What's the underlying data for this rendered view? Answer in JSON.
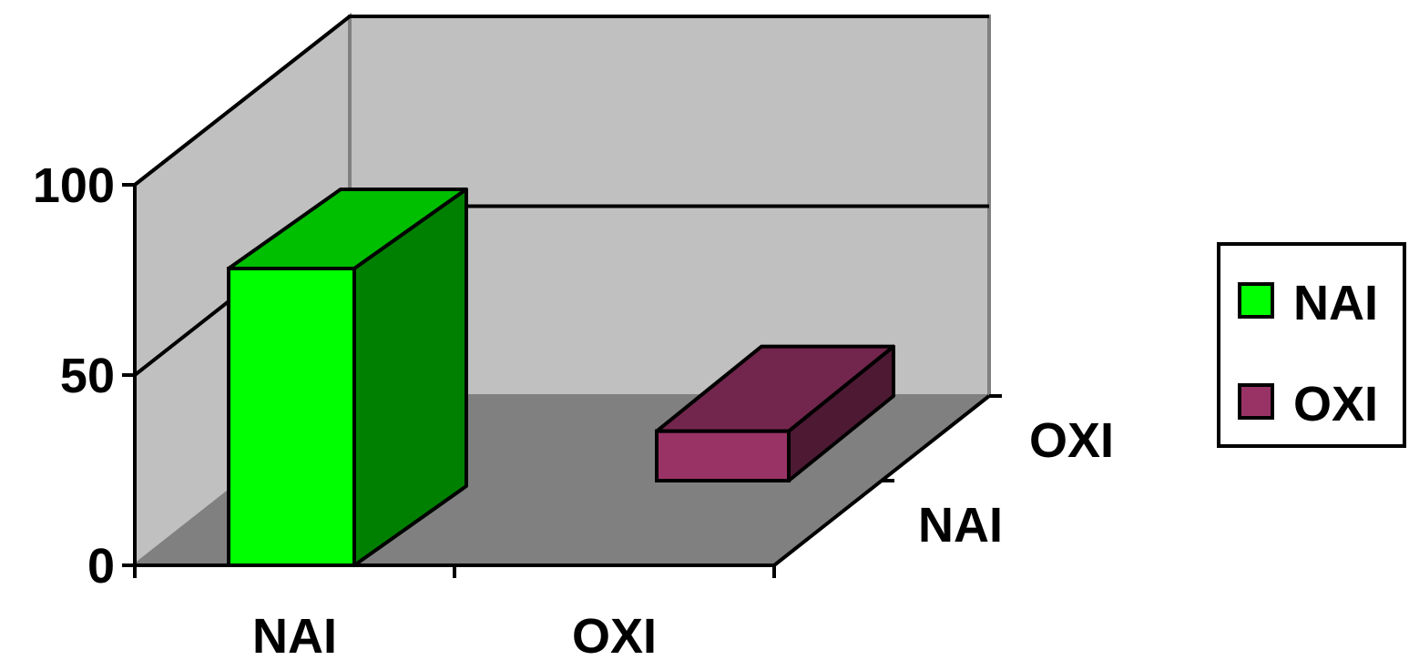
{
  "chart_data": {
    "type": "bar",
    "style": "3d-column",
    "title": "",
    "xlabel": "",
    "ylabel": "",
    "ylim": [
      0,
      100
    ],
    "yticks": [
      0,
      50,
      100
    ],
    "categories": [
      "NAI",
      "OXI"
    ],
    "depth_categories": [
      "NAI",
      "OXI"
    ],
    "series": [
      {
        "name": "NAI",
        "color": "#00ff00",
        "category": "NAI",
        "value": 78
      },
      {
        "name": "OXI",
        "color": "#993366",
        "category": "OXI",
        "value": 13
      }
    ],
    "grid": true,
    "legend": {
      "position": "right",
      "entries": [
        "NAI",
        "OXI"
      ]
    },
    "colors": {
      "back_wall": "#c0c0c0",
      "floor": "#808080",
      "NAI_front": "#00ff00",
      "NAI_top": "#00bf00",
      "NAI_side": "#008000",
      "OXI_front": "#993366",
      "OXI_top": "#73264d",
      "OXI_side": "#4d1933"
    }
  }
}
